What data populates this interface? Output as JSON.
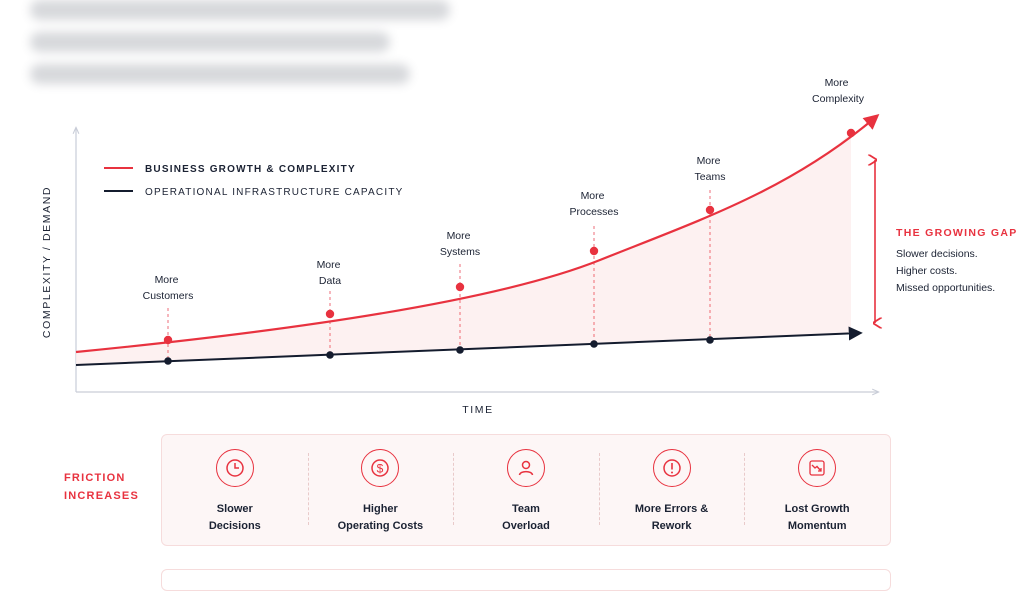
{
  "legend": {
    "growth_label": "BUSINESS GROWTH & COMPLEXITY",
    "capacity_label": "OPERATIONAL INFRASTRUCTURE CAPACITY"
  },
  "axes": {
    "y_label": "COMPLEXITY / DEMAND",
    "x_label": "TIME"
  },
  "annotations": [
    {
      "line1": "More",
      "line2": "Customers"
    },
    {
      "line1": "More",
      "line2": "Data"
    },
    {
      "line1": "More",
      "line2": "Systems"
    },
    {
      "line1": "More",
      "line2": "Processes"
    },
    {
      "line1": "More",
      "line2": "Teams"
    },
    {
      "line1": "More",
      "line2": "Complexity"
    }
  ],
  "gap": {
    "title": "THE GROWING GAP",
    "lines": [
      "Slower decisions.",
      "Higher costs.",
      "Missed opportunities."
    ]
  },
  "friction": {
    "line1": "FRICTION",
    "line2": "INCREASES"
  },
  "impacts": [
    {
      "icon": "clock-icon",
      "line1": "Slower",
      "line2": "Decisions"
    },
    {
      "icon": "dollar-icon",
      "line1": "Higher",
      "line2": "Operating Costs"
    },
    {
      "icon": "person-icon",
      "line1": "Team",
      "line2": "Overload"
    },
    {
      "icon": "alert-icon",
      "line1": "More Errors &",
      "line2": "Rework"
    },
    {
      "icon": "chart-down-icon",
      "line1": "Lost Growth",
      "line2": "Momentum"
    }
  ],
  "colors": {
    "growth": "#e8323f",
    "capacity": "#141c2e",
    "gap_fill": "#fdeeee",
    "axis": "#c9cdd8"
  }
}
